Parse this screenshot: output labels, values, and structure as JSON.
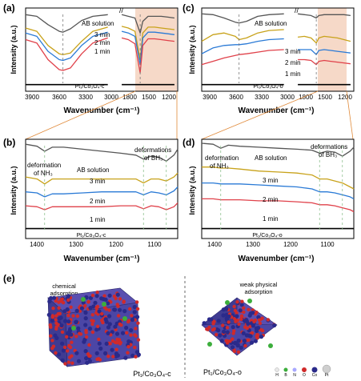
{
  "colors": {
    "ab_solution": "#555555",
    "min3": "#c8a21a",
    "min2": "#2a7ad6",
    "min1": "#e0414a",
    "catalyst": "#000000",
    "shade": "#f6d9c8",
    "guide": "#8fbf8f",
    "dash": "#7a7a7a",
    "connector": "#e08a3a"
  },
  "panels": {
    "a": {
      "label": "(a)",
      "ylabel": "Intensity (a.u.)",
      "xlabel": "Wavenumber (cm⁻¹)",
      "ticks_left": [
        "3900",
        "3600",
        "3300",
        "3000"
      ],
      "ticks_right": [
        "1800",
        "1500",
        "1200"
      ],
      "ab": "AB solution",
      "m3": "3 min",
      "m2": "2 min",
      "m1": "1 min",
      "cat": "Pt₁/Co₃O₄-c"
    },
    "c": {
      "label": "(c)",
      "ylabel": "Intensity (a.u.)",
      "xlabel": "Wavenumber (cm⁻¹)",
      "ticks_left": [
        "3900",
        "3600",
        "3300",
        "3000"
      ],
      "ticks_right": [
        "1800",
        "1500",
        "1200"
      ],
      "ab": "AB solution",
      "m3": "3 min",
      "m2": "2 min",
      "m1": "1 min",
      "cat": "Pt₁/Co₃O₄-o"
    },
    "b": {
      "label": "(b)",
      "ylabel": "Intensity (a.u.)",
      "xlabel": "Wavenumber (cm⁻¹)",
      "ticks": [
        "1400",
        "1300",
        "1200",
        "1100"
      ],
      "def_nh3": "deformation",
      "def_nh3_2": "of NH₃",
      "ab": "AB solution",
      "def_bh3": "deformations",
      "def_bh3_2": "of BH₃",
      "m3": "3 min",
      "m2": "2 min",
      "m1": "1 min",
      "cat": "Pt₁/Co₃O₄-c"
    },
    "d": {
      "label": "(d)",
      "ylabel": "Intensity (a.u.)",
      "xlabel": "Wavenumber (cm⁻¹)",
      "ticks": [
        "1400",
        "1300",
        "1200",
        "1100"
      ],
      "def_nh3": "deformation",
      "def_nh3_2": "of NH₃",
      "ab": "AB solution",
      "def_bh3": "deformations",
      "def_bh3_2": "of BH₃",
      "m3": "3 min",
      "m2": "2 min",
      "m1": "1 min",
      "cat": "Pt₁/Co₃O₄-o"
    },
    "e": {
      "label": "(e)",
      "left_title1": "chemical",
      "left_title2": "adsorption",
      "right_title1": "weak physical",
      "right_title2": "adsorption",
      "left_cat": "Pt₁/Co₃O₄-c",
      "right_cat": "Pt₁/Co₃O₄-o",
      "legend": [
        "H",
        "B",
        "N",
        "O",
        "Co",
        "Pt"
      ]
    }
  },
  "chart_data": [
    {
      "type": "line",
      "panel": "a",
      "xlabel": "Wavenumber (cm⁻¹)",
      "ylabel": "Intensity (a.u.)",
      "x_ranges": [
        [
          3900,
          2700
        ],
        [
          1950,
          1050
        ]
      ],
      "x": [
        3900,
        3750,
        3600,
        3450,
        3400,
        3300,
        3150,
        3000,
        2800,
        1900,
        1800,
        1700,
        1620,
        1580,
        1500,
        1400,
        1300,
        1200,
        1100
      ],
      "series": [
        {
          "name": "AB solution",
          "values": [
            0.92,
            0.9,
            0.8,
            0.72,
            0.71,
            0.75,
            0.85,
            0.9,
            0.92,
            0.92,
            0.9,
            0.88,
            0.7,
            0.84,
            0.9,
            0.9,
            0.9,
            0.89,
            0.88
          ]
        },
        {
          "name": "3 min",
          "values": [
            0.76,
            0.72,
            0.55,
            0.45,
            0.44,
            0.46,
            0.6,
            0.72,
            0.77,
            0.78,
            0.76,
            0.72,
            0.38,
            0.7,
            0.77,
            0.77,
            0.76,
            0.75,
            0.74
          ]
        },
        {
          "name": "2 min",
          "values": [
            0.7,
            0.66,
            0.48,
            0.38,
            0.37,
            0.4,
            0.55,
            0.66,
            0.71,
            0.72,
            0.7,
            0.66,
            0.32,
            0.64,
            0.71,
            0.71,
            0.7,
            0.69,
            0.68
          ]
        },
        {
          "name": "1 min",
          "values": [
            0.62,
            0.58,
            0.38,
            0.26,
            0.25,
            0.28,
            0.45,
            0.58,
            0.64,
            0.64,
            0.62,
            0.57,
            0.22,
            0.55,
            0.63,
            0.63,
            0.62,
            0.61,
            0.6
          ]
        },
        {
          "name": "Pt₁/Co₃O₄-c",
          "values": [
            0.08,
            0.08,
            0.08,
            0.08,
            0.08,
            0.08,
            0.08,
            0.08,
            0.08,
            0.08,
            0.08,
            0.08,
            0.08,
            0.08,
            0.08,
            0.08,
            0.08,
            0.08,
            0.08
          ]
        }
      ]
    },
    {
      "type": "line",
      "panel": "c",
      "xlabel": "Wavenumber (cm⁻¹)",
      "ylabel": "Intensity (a.u.)",
      "x_ranges": [
        [
          3900,
          2700
        ],
        [
          1950,
          1050
        ]
      ],
      "x": [
        3900,
        3750,
        3600,
        3450,
        3400,
        3300,
        3150,
        3000,
        2800,
        1900,
        1800,
        1700,
        1620,
        1580,
        1500,
        1400,
        1300,
        1200,
        1100
      ],
      "series": [
        {
          "name": "AB solution",
          "values": [
            0.93,
            0.92,
            0.88,
            0.83,
            0.82,
            0.84,
            0.9,
            0.92,
            0.93,
            0.93,
            0.92,
            0.91,
            0.88,
            0.91,
            0.92,
            0.92,
            0.92,
            0.92,
            0.91
          ]
        },
        {
          "name": "3 min",
          "values": [
            0.6,
            0.68,
            0.7,
            0.66,
            0.62,
            0.64,
            0.7,
            0.73,
            0.74,
            0.65,
            0.66,
            0.64,
            0.58,
            0.64,
            0.66,
            0.65,
            0.64,
            0.62,
            0.6
          ]
        },
        {
          "name": "2 min",
          "values": [
            0.45,
            0.52,
            0.55,
            0.56,
            0.56,
            0.57,
            0.6,
            0.62,
            0.63,
            0.5,
            0.5,
            0.5,
            0.44,
            0.49,
            0.5,
            0.49,
            0.48,
            0.47,
            0.46
          ]
        },
        {
          "name": "1 min",
          "values": [
            0.32,
            0.36,
            0.4,
            0.43,
            0.44,
            0.45,
            0.47,
            0.49,
            0.5,
            0.38,
            0.38,
            0.37,
            0.32,
            0.36,
            0.37,
            0.36,
            0.35,
            0.34,
            0.33
          ]
        },
        {
          "name": "Pt₁/Co₃O₄-o",
          "values": [
            0.08,
            0.08,
            0.08,
            0.08,
            0.08,
            0.08,
            0.08,
            0.08,
            0.08,
            0.08,
            0.08,
            0.08,
            0.08,
            0.08,
            0.08,
            0.08,
            0.08,
            0.08,
            0.08
          ]
        }
      ]
    },
    {
      "type": "line",
      "panel": "b",
      "xlabel": "Wavenumber (cm⁻¹)",
      "ylabel": "Intensity (a.u.)",
      "x_range": [
        1450,
        1050
      ],
      "x": [
        1450,
        1420,
        1400,
        1380,
        1350,
        1300,
        1250,
        1200,
        1160,
        1140,
        1120,
        1100,
        1080,
        1060,
        1050
      ],
      "series": [
        {
          "name": "AB solution",
          "values": [
            0.95,
            0.93,
            0.88,
            0.92,
            0.92,
            0.9,
            0.88,
            0.86,
            0.84,
            0.8,
            0.83,
            0.82,
            0.78,
            0.84,
            0.9
          ]
        },
        {
          "name": "3 min",
          "values": [
            0.62,
            0.6,
            0.55,
            0.6,
            0.6,
            0.6,
            0.6,
            0.6,
            0.6,
            0.56,
            0.6,
            0.6,
            0.58,
            0.62,
            0.66
          ]
        },
        {
          "name": "2 min",
          "values": [
            0.47,
            0.46,
            0.42,
            0.45,
            0.45,
            0.46,
            0.47,
            0.47,
            0.47,
            0.44,
            0.47,
            0.46,
            0.44,
            0.48,
            0.52
          ]
        },
        {
          "name": "1 min",
          "values": [
            0.33,
            0.32,
            0.29,
            0.32,
            0.32,
            0.32,
            0.32,
            0.33,
            0.33,
            0.3,
            0.33,
            0.32,
            0.29,
            0.32,
            0.36
          ]
        },
        {
          "name": "Pt₁/Co₃O₄-c",
          "values": [
            0.1,
            0.1,
            0.1,
            0.1,
            0.1,
            0.1,
            0.1,
            0.1,
            0.1,
            0.1,
            0.1,
            0.1,
            0.1,
            0.1,
            0.1
          ]
        }
      ]
    },
    {
      "type": "line",
      "panel": "d",
      "xlabel": "Wavenumber (cm⁻¹)",
      "ylabel": "Intensity (a.u.)",
      "x_range": [
        1450,
        1050
      ],
      "x": [
        1450,
        1420,
        1400,
        1380,
        1350,
        1300,
        1250,
        1200,
        1160,
        1140,
        1120,
        1100,
        1080,
        1060,
        1050
      ],
      "series": [
        {
          "name": "AB solution",
          "values": [
            0.96,
            0.95,
            0.91,
            0.94,
            0.93,
            0.92,
            0.91,
            0.9,
            0.89,
            0.86,
            0.88,
            0.87,
            0.83,
            0.88,
            0.92
          ]
        },
        {
          "name": "3 min",
          "values": [
            0.72,
            0.72,
            0.71,
            0.71,
            0.7,
            0.68,
            0.67,
            0.66,
            0.64,
            0.6,
            0.6,
            0.58,
            0.56,
            0.52,
            0.5
          ]
        },
        {
          "name": "2 min",
          "values": [
            0.56,
            0.56,
            0.55,
            0.55,
            0.55,
            0.54,
            0.53,
            0.52,
            0.5,
            0.47,
            0.47,
            0.46,
            0.44,
            0.42,
            0.4
          ]
        },
        {
          "name": "1 min",
          "values": [
            0.4,
            0.4,
            0.39,
            0.39,
            0.39,
            0.38,
            0.38,
            0.37,
            0.36,
            0.34,
            0.34,
            0.33,
            0.31,
            0.29,
            0.27
          ]
        },
        {
          "name": "Pt₁/Co₃O₄-o",
          "values": [
            0.1,
            0.1,
            0.1,
            0.1,
            0.1,
            0.1,
            0.1,
            0.1,
            0.1,
            0.1,
            0.1,
            0.1,
            0.1,
            0.1,
            0.1
          ]
        }
      ]
    }
  ]
}
